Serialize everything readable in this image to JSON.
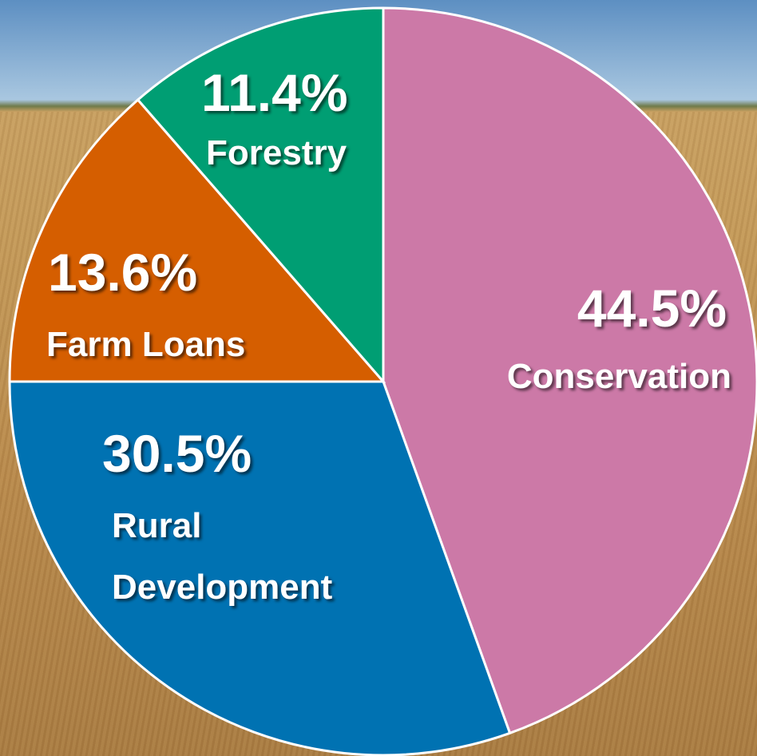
{
  "chart_data": {
    "type": "pie",
    "categories": [
      "Conservation",
      "Rural Development",
      "Farm Loans",
      "Forestry"
    ],
    "values": [
      44.5,
      30.5,
      13.6,
      11.4
    ],
    "value_labels": [
      "44.5%",
      "30.5%",
      "13.6%",
      "11.4%"
    ],
    "colors": [
      "#cc79a7",
      "#0072b2",
      "#d55e00",
      "#009e73"
    ]
  }
}
